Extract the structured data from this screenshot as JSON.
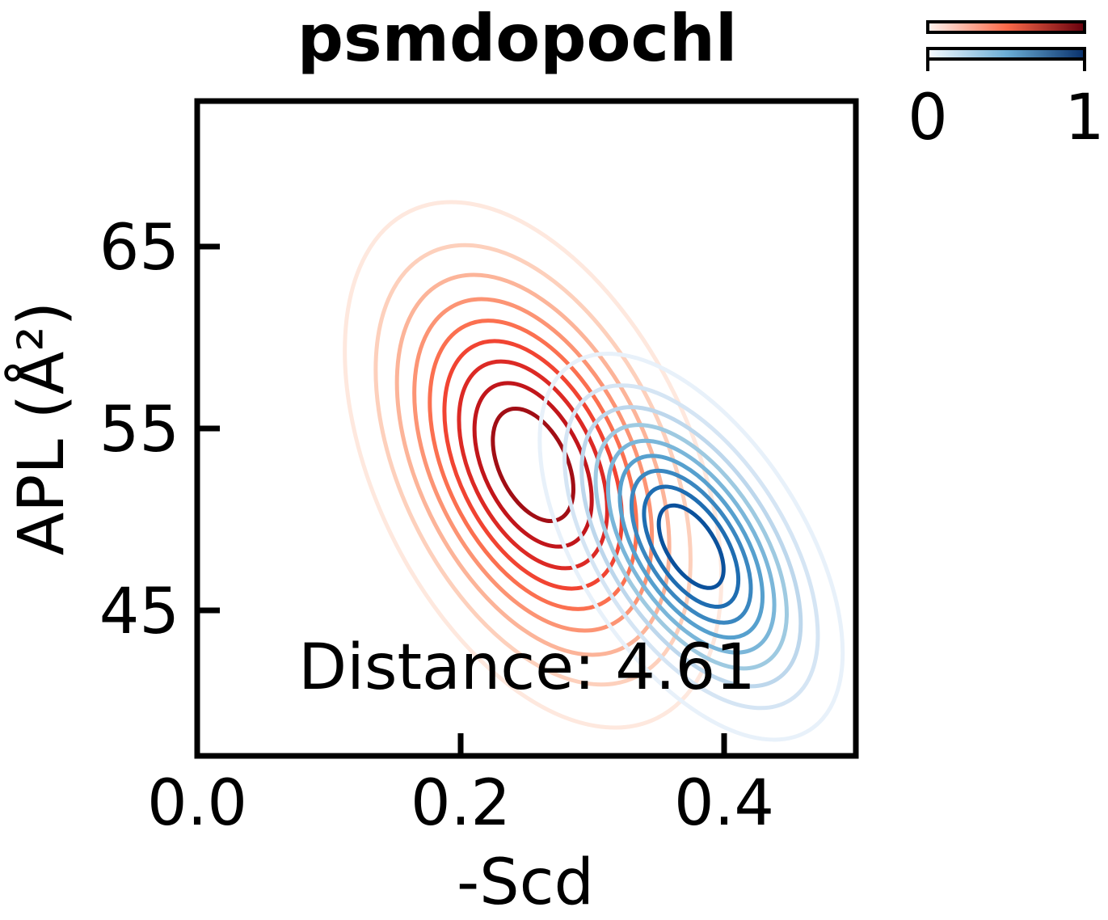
{
  "chart_data": {
    "type": "contour",
    "title": "psmdopochl",
    "xlabel": "-Scd",
    "ylabel": "APL (Å²)",
    "xlim": [
      0.0,
      0.5
    ],
    "ylim": [
      37,
      73
    ],
    "xticks": [
      0.0,
      0.2,
      0.4
    ],
    "xtick_labels": [
      "0.0",
      "0.2",
      "0.4"
    ],
    "yticks": [
      45,
      55,
      65
    ],
    "ytick_labels": [
      "45",
      "55",
      "65"
    ],
    "annotation": "Distance: 4.61",
    "colorbar": {
      "min_label": "0",
      "max_label": "1",
      "placement": "top-right"
    },
    "series": [
      {
        "colormap": "Reds",
        "center": [
          0.255,
          53.0
        ],
        "levels": [
          0.1,
          0.2,
          0.3,
          0.4,
          0.5,
          0.6,
          0.7,
          0.8,
          0.9
        ],
        "outer_semi_axes": [
          0.12,
          15.5
        ],
        "angle_deg": 26,
        "colors": [
          "#fee8de",
          "#fdd0bc",
          "#fcb499",
          "#fc9474",
          "#fb7050",
          "#f14432",
          "#dc2a25",
          "#c1161b",
          "#a10e15"
        ]
      },
      {
        "colormap": "Blues",
        "center": [
          0.375,
          48.5
        ],
        "levels": [
          0.1,
          0.2,
          0.3,
          0.4,
          0.5,
          0.6,
          0.7,
          0.8,
          0.9
        ],
        "outer_semi_axes": [
          0.085,
          12.0
        ],
        "angle_deg": 33,
        "colors": [
          "#e8f1fa",
          "#d5e5f4",
          "#bdd7ec",
          "#9ecae1",
          "#7ab6d9",
          "#56a0ce",
          "#3a87c0",
          "#1f6db1",
          "#0b519c"
        ]
      }
    ]
  }
}
